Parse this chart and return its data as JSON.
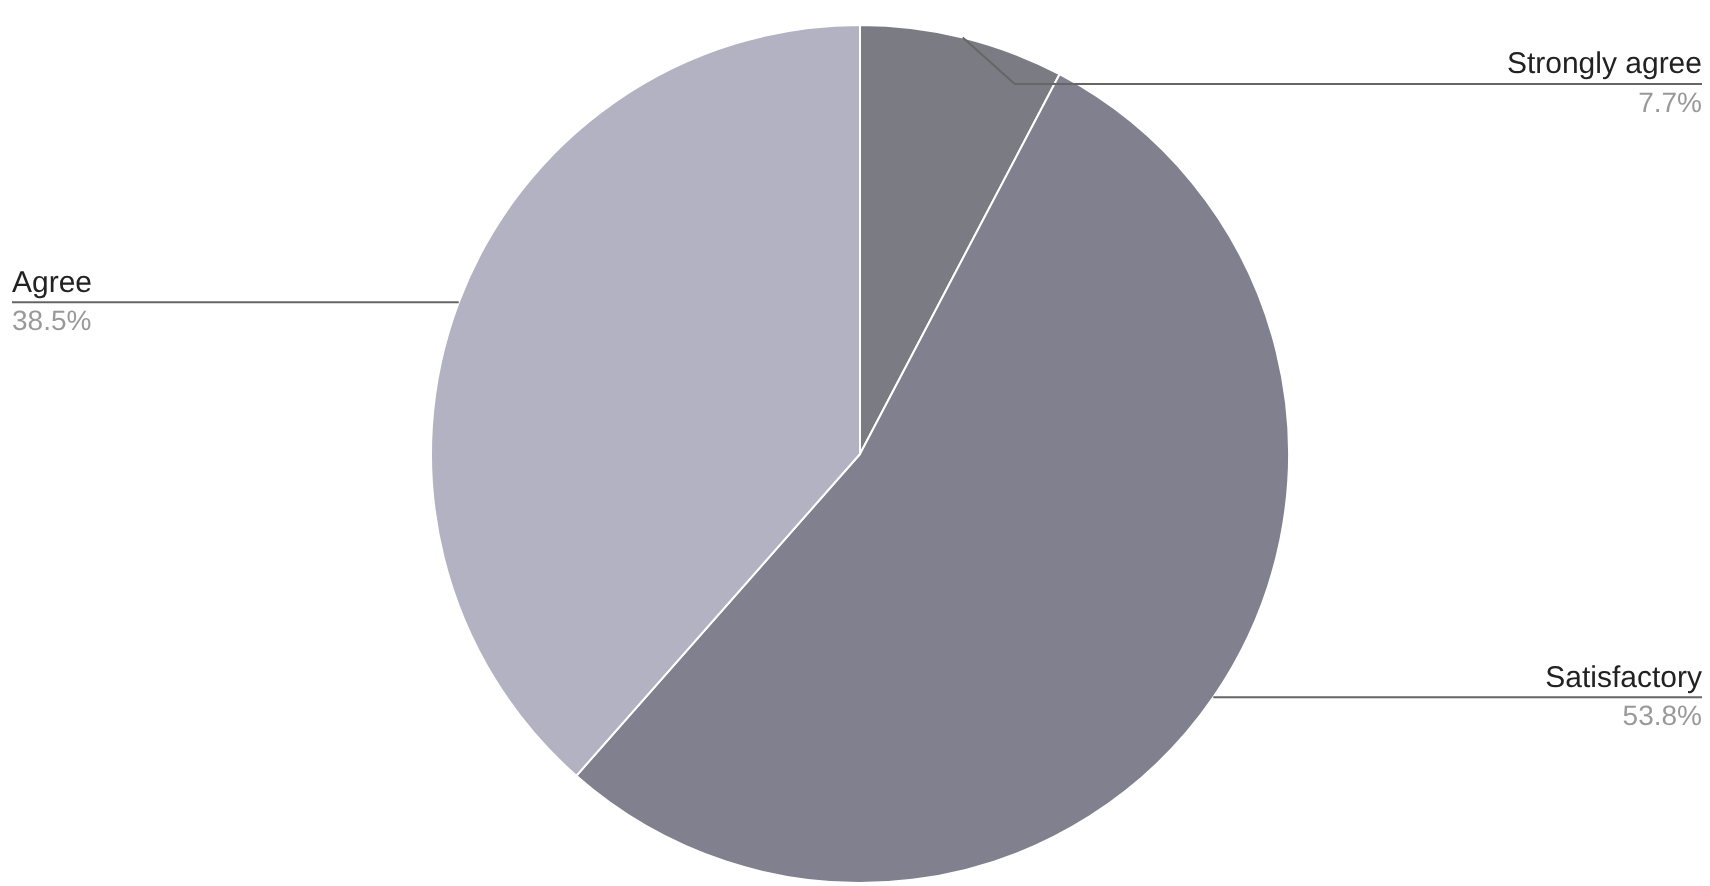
{
  "chart_data": {
    "type": "pie",
    "categories": [
      "Strongly agree",
      "Satisfactory",
      "Agree"
    ],
    "values": [
      7.7,
      53.8,
      38.5
    ],
    "colors": [
      "#7b7b84",
      "#80808e",
      "#b2b2c2"
    ],
    "value_labels": [
      "7.7%",
      "53.8%",
      "38.5%"
    ],
    "legend": false
  }
}
